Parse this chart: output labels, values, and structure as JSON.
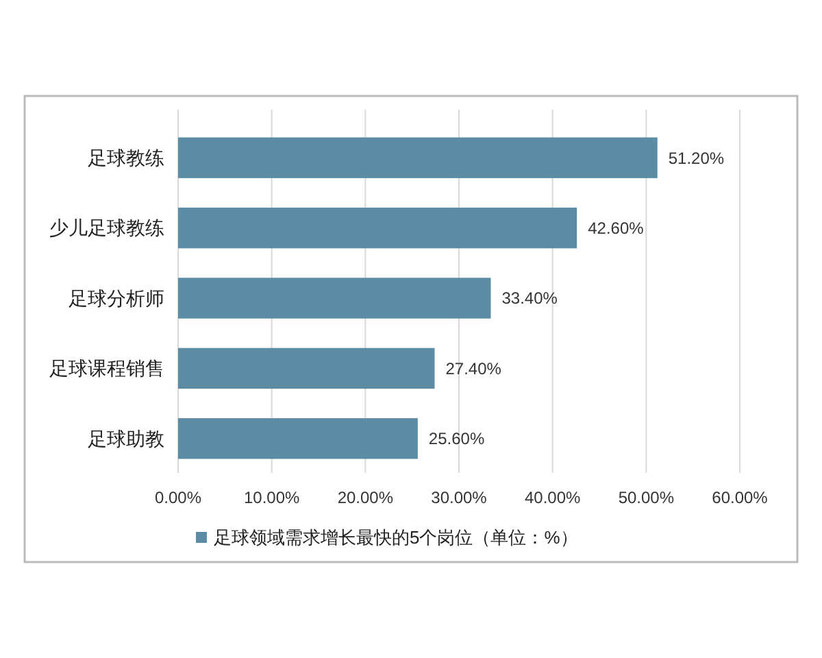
{
  "chart_data": {
    "type": "bar",
    "orientation": "horizontal",
    "categories": [
      "足球教练",
      "少儿足球教练",
      "足球分析师",
      "足球课程销售",
      "足球助教"
    ],
    "series": [
      {
        "name": "足球领域需求增长最快的5个岗位（单位：%）",
        "color": "#5b8ca3",
        "values": [
          51.2,
          42.6,
          33.4,
          27.4,
          25.6
        ],
        "value_labels": [
          "51.20%",
          "42.60%",
          "33.40%",
          "27.40%",
          "25.60%"
        ]
      }
    ],
    "xlim": [
      0,
      60
    ],
    "xticks": [
      {
        "value": 0,
        "label": "0.00%"
      },
      {
        "value": 10,
        "label": "10.00%"
      },
      {
        "value": 20,
        "label": "20.00%"
      },
      {
        "value": 30,
        "label": "30.00%"
      },
      {
        "value": 40,
        "label": "40.00%"
      },
      {
        "value": 50,
        "label": "50.00%"
      },
      {
        "value": 60,
        "label": "60.00%"
      }
    ],
    "grid": "x",
    "legend": "bottom"
  }
}
